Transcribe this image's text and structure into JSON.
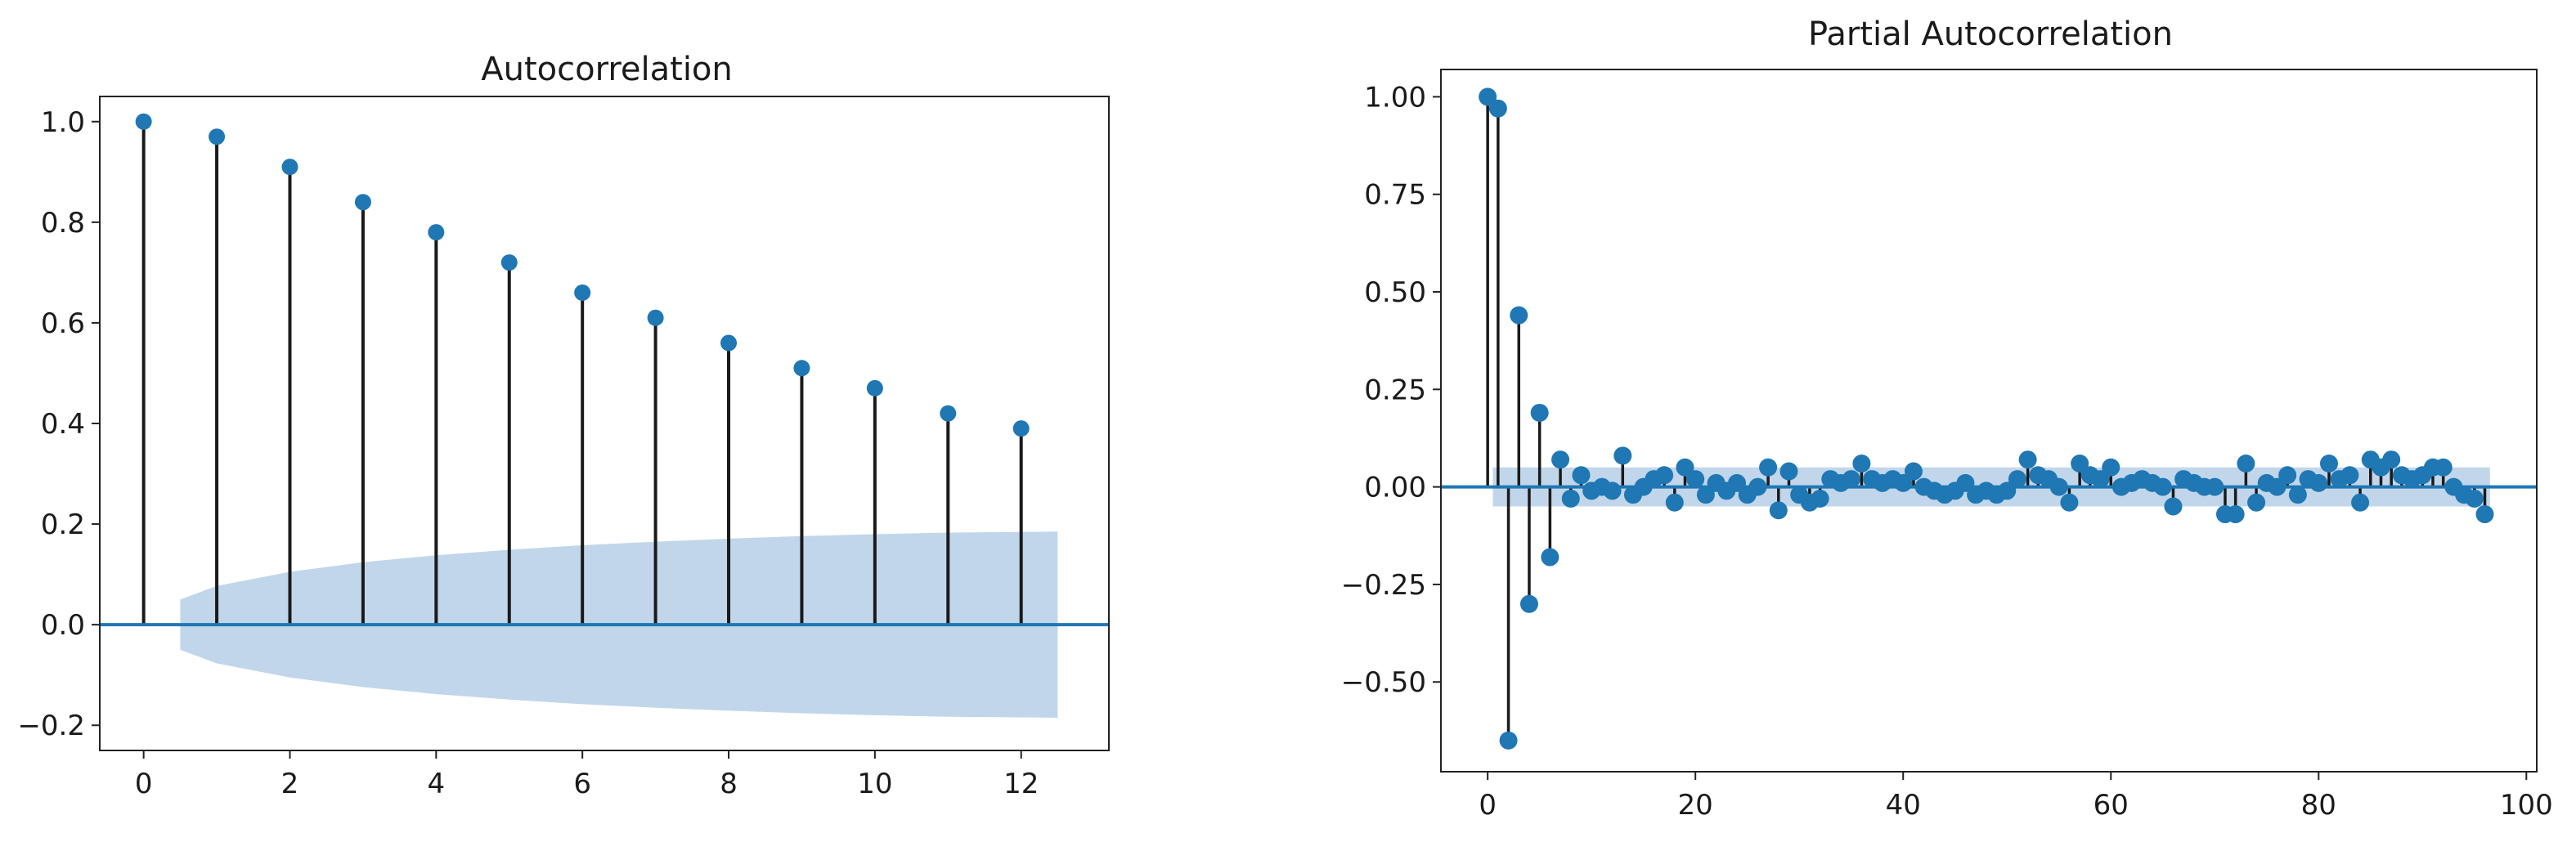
{
  "chart_data": [
    {
      "type": "stem",
      "title": "Autocorrelation",
      "xlim": [
        -0.6,
        13.2
      ],
      "ylim": [
        -0.25,
        1.05
      ],
      "xticks": [
        0,
        2,
        4,
        6,
        8,
        10,
        12
      ],
      "yticks": [
        -0.2,
        0.0,
        0.2,
        0.4,
        0.6,
        0.8,
        1.0
      ],
      "xtick_labels": [
        "0",
        "2",
        "4",
        "6",
        "8",
        "10",
        "12"
      ],
      "ytick_labels": [
        "−0.2",
        "0.0",
        "0.2",
        "0.4",
        "0.6",
        "0.8",
        "1.0"
      ],
      "baseline": 0,
      "x": [
        0,
        1,
        2,
        3,
        4,
        5,
        6,
        7,
        8,
        9,
        10,
        11,
        12
      ],
      "values": [
        1.0,
        0.97,
        0.91,
        0.84,
        0.78,
        0.72,
        0.66,
        0.61,
        0.56,
        0.51,
        0.47,
        0.42,
        0.39
      ],
      "confidence_band": {
        "x": [
          0.5,
          1,
          2,
          3,
          4,
          5,
          6,
          7,
          8,
          9,
          10,
          11,
          12.5
        ],
        "upper": [
          0.05,
          0.077,
          0.105,
          0.124,
          0.138,
          0.149,
          0.158,
          0.165,
          0.171,
          0.176,
          0.18,
          0.183,
          0.185
        ],
        "lower": [
          -0.05,
          -0.077,
          -0.105,
          -0.124,
          -0.138,
          -0.149,
          -0.158,
          -0.165,
          -0.171,
          -0.176,
          -0.18,
          -0.183,
          -0.185
        ]
      },
      "grid": false,
      "legend": "none"
    },
    {
      "type": "stem",
      "title": "Partial Autocorrelation",
      "xlim": [
        -4.5,
        101
      ],
      "ylim": [
        -0.73,
        1.07
      ],
      "xticks": [
        0,
        20,
        40,
        60,
        80,
        100
      ],
      "yticks": [
        -0.5,
        -0.25,
        0.0,
        0.25,
        0.5,
        0.75,
        1.0
      ],
      "xtick_labels": [
        "0",
        "20",
        "40",
        "60",
        "80",
        "100"
      ],
      "ytick_labels": [
        "−0.50",
        "−0.25",
        "0.00",
        "0.25",
        "0.50",
        "0.75",
        "1.00"
      ],
      "baseline": 0,
      "x": [
        0,
        1,
        2,
        3,
        4,
        5,
        6,
        7,
        8,
        9,
        10,
        11,
        12,
        13,
        14,
        15,
        16,
        17,
        18,
        19,
        20,
        21,
        22,
        23,
        24,
        25,
        26,
        27,
        28,
        29,
        30,
        31,
        32,
        33,
        34,
        35,
        36,
        37,
        38,
        39,
        40,
        41,
        42,
        43,
        44,
        45,
        46,
        47,
        48,
        49,
        50,
        51,
        52,
        53,
        54,
        55,
        56,
        57,
        58,
        59,
        60,
        61,
        62,
        63,
        64,
        65,
        66,
        67,
        68,
        69,
        70,
        71,
        72,
        73,
        74,
        75,
        76,
        77,
        78,
        79,
        80,
        81,
        82,
        83,
        84,
        85,
        86,
        87,
        88,
        89,
        90,
        91,
        92,
        93,
        94,
        95,
        96
      ],
      "values": [
        1.0,
        0.97,
        -0.65,
        0.44,
        -0.3,
        0.19,
        -0.18,
        0.07,
        -0.03,
        0.03,
        -0.01,
        0.0,
        -0.01,
        0.08,
        -0.02,
        0.0,
        0.02,
        0.03,
        -0.04,
        0.05,
        0.02,
        -0.02,
        0.01,
        -0.01,
        0.01,
        -0.02,
        0.0,
        0.05,
        -0.06,
        0.04,
        -0.02,
        -0.04,
        -0.03,
        0.02,
        0.01,
        0.02,
        0.06,
        0.02,
        0.01,
        0.02,
        0.01,
        0.04,
        0.0,
        -0.01,
        -0.02,
        -0.01,
        0.01,
        -0.02,
        -0.01,
        -0.02,
        -0.01,
        0.02,
        0.07,
        0.03,
        0.02,
        0.0,
        -0.04,
        0.06,
        0.03,
        0.02,
        0.05,
        0.0,
        0.01,
        0.02,
        0.01,
        0.0,
        -0.05,
        0.02,
        0.01,
        0.0,
        0.0,
        -0.07,
        -0.07,
        0.06,
        -0.04,
        0.01,
        0.0,
        0.03,
        -0.02,
        0.02,
        0.01,
        0.06,
        0.02,
        0.03,
        -0.04,
        0.07,
        0.05,
        0.07,
        0.03,
        0.02,
        0.03,
        0.05,
        0.05,
        0.0,
        -0.02,
        -0.03,
        -0.07
      ],
      "confidence_band": {
        "x": [
          0.5,
          96.5
        ],
        "upper": [
          0.05,
          0.05
        ],
        "lower": [
          -0.05,
          -0.05
        ]
      },
      "grid": false,
      "legend": "none"
    }
  ],
  "colors": {
    "marker": "#1f77b4",
    "stem": "#1a1a1a",
    "baseline": "#1f77b4",
    "band": "#b6cfe6",
    "axes": "#222222",
    "text": "#1a1a1a"
  }
}
